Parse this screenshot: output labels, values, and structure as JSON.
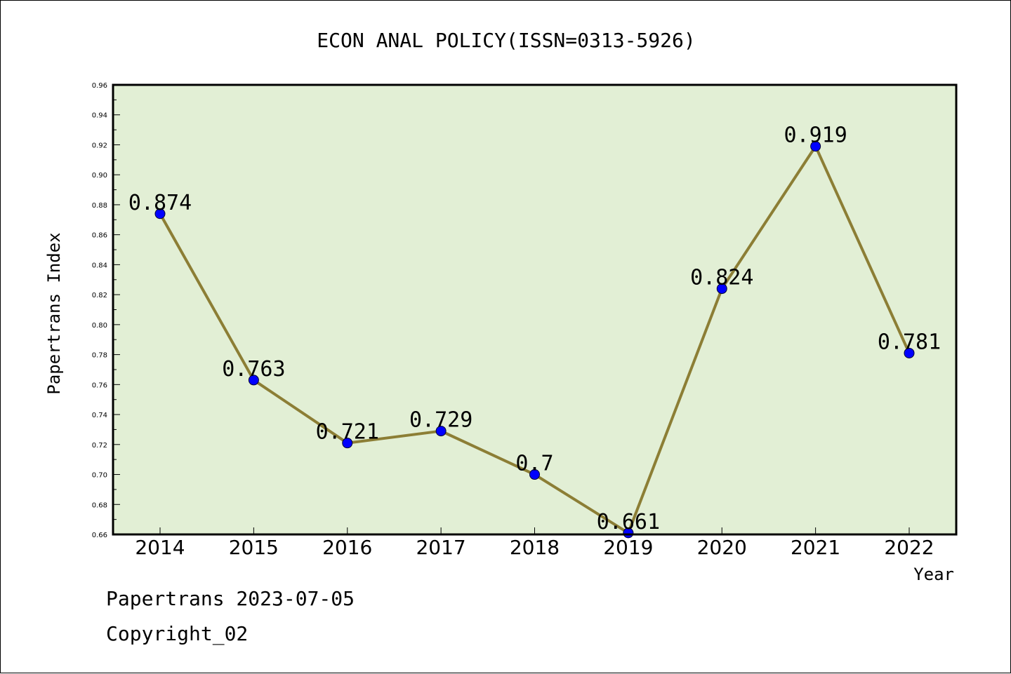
{
  "chart_data": {
    "type": "line",
    "title": "ECON ANAL POLICY(ISSN=0313-5926)",
    "xlabel": "Year",
    "ylabel": "Papertrans Index",
    "x": [
      "2014",
      "2015",
      "2016",
      "2017",
      "2018",
      "2019",
      "2020",
      "2021",
      "2022"
    ],
    "series": [
      {
        "values": [
          0.874,
          0.763,
          0.721,
          0.729,
          0.7,
          0.661,
          0.824,
          0.919,
          0.781
        ],
        "labels": [
          "0.874",
          "0.763",
          "0.721",
          "0.729",
          "0.7",
          "0.661",
          "0.824",
          "0.919",
          "0.781"
        ]
      }
    ],
    "ylim": [
      0.66,
      0.96
    ],
    "yticks": [
      "0.66",
      "0.68",
      "0.70",
      "0.72",
      "0.74",
      "0.76",
      "0.78",
      "0.80",
      "0.82",
      "0.84",
      "0.86",
      "0.88",
      "0.90",
      "0.92",
      "0.94",
      "0.96"
    ],
    "grid": false,
    "colors": {
      "plot_background": "#e2efd5",
      "line": "#8c7e35",
      "marker": "#0000ff"
    }
  },
  "footer": {
    "line1": "Papertrans 2023-07-05",
    "line2": "Copyright_02"
  }
}
